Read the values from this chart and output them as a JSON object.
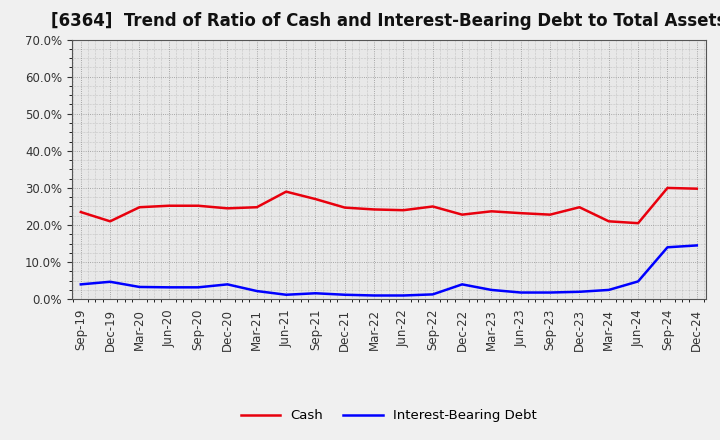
{
  "title": "[6364]  Trend of Ratio of Cash and Interest-Bearing Debt to Total Assets",
  "x_labels": [
    "Sep-19",
    "Dec-19",
    "Mar-20",
    "Jun-20",
    "Sep-20",
    "Dec-20",
    "Mar-21",
    "Jun-21",
    "Sep-21",
    "Dec-21",
    "Mar-22",
    "Jun-22",
    "Sep-22",
    "Dec-22",
    "Mar-23",
    "Jun-23",
    "Sep-23",
    "Dec-23",
    "Mar-24",
    "Jun-24",
    "Sep-24",
    "Dec-24"
  ],
  "cash": [
    0.235,
    0.21,
    0.248,
    0.252,
    0.252,
    0.245,
    0.248,
    0.29,
    0.27,
    0.247,
    0.242,
    0.24,
    0.25,
    0.228,
    0.237,
    0.232,
    0.228,
    0.248,
    0.21,
    0.205,
    0.3,
    0.298
  ],
  "ibd": [
    0.04,
    0.047,
    0.033,
    0.032,
    0.032,
    0.04,
    0.022,
    0.012,
    0.016,
    0.012,
    0.01,
    0.01,
    0.013,
    0.04,
    0.025,
    0.018,
    0.018,
    0.02,
    0.025,
    0.048,
    0.14,
    0.145
  ],
  "cash_color": "#e8000d",
  "ibd_color": "#0000ff",
  "ylim": [
    0.0,
    0.7
  ],
  "yticks": [
    0.0,
    0.1,
    0.2,
    0.3,
    0.4,
    0.5,
    0.6,
    0.7
  ],
  "plot_bg_color": "#e8e8e8",
  "fig_bg_color": "#f0f0f0",
  "grid_color": "#888888",
  "spine_color": "#555555",
  "legend_cash": "Cash",
  "legend_ibd": "Interest-Bearing Debt",
  "title_fontsize": 12,
  "label_fontsize": 8.5
}
